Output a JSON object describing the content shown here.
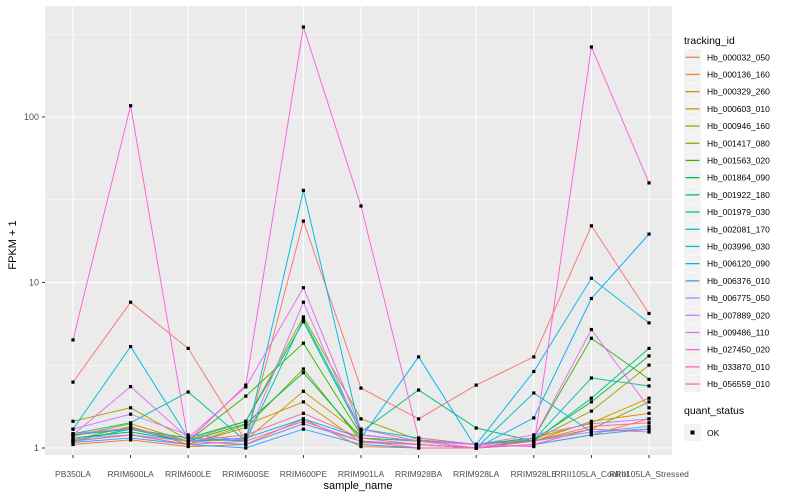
{
  "chart_data": {
    "type": "line",
    "xlabel": "sample_name",
    "ylabel": "FPKM + 1",
    "yscale": "log10",
    "yticks": [
      1,
      10,
      100
    ],
    "ytick_labels": [
      "1",
      "10",
      "100"
    ],
    "yminor": [
      3.162,
      31.62,
      316.2
    ],
    "ylim": [
      0.9,
      468
    ],
    "grid": true,
    "legend_position": "right",
    "panel_bg": "#EBEBEB",
    "grid_color": "#FFFFFF",
    "tick_text_color": "#4D4D4D",
    "marker": "square",
    "marker_color": "#000000",
    "legend_key_bg": "#F2F2F2",
    "legend_title": "tracking_id",
    "legend2_title": "quant_status",
    "legend2_items": [
      {
        "label": "OK",
        "shape": "square",
        "color": "#000000"
      }
    ],
    "categories": [
      "PB350LA",
      "RRIM600LA",
      "RRIM600LE",
      "RRIM600SE",
      "RRIM600PE",
      "RRIM901LA",
      "RRIM928BA",
      "RRIM928LA",
      "RRIM928LE",
      "RRII105LA_Control",
      "RRII105LA_Stressed"
    ],
    "series": [
      {
        "name": "Hb_000032_050",
        "color": "#F8766D",
        "values": [
          2.5,
          7.6,
          4.0,
          1.1,
          23.5,
          2.3,
          1.5,
          2.4,
          3.55,
          22,
          6.5
        ]
      },
      {
        "name": "Hb_000136_160",
        "color": "#EA8331",
        "values": [
          1.05,
          1.12,
          1.02,
          1.05,
          1.5,
          1.02,
          1.0,
          1.0,
          1.05,
          1.2,
          1.5
        ]
      },
      {
        "name": "Hb_000329_260",
        "color": "#D89000",
        "values": [
          1.1,
          1.2,
          1.05,
          1.38,
          1.9,
          1.08,
          1.05,
          1.0,
          1.1,
          1.45,
          1.62
        ]
      },
      {
        "name": "Hb_000603_010",
        "color": "#C09B00",
        "values": [
          1.18,
          1.4,
          1.1,
          1.12,
          2.2,
          1.2,
          1.1,
          1.05,
          1.15,
          1.42,
          2.0
        ]
      },
      {
        "name": "Hb_000946_160",
        "color": "#A3A500",
        "values": [
          1.45,
          1.75,
          1.12,
          1.45,
          6.2,
          1.5,
          1.12,
          1.05,
          1.12,
          1.67,
          3.17
        ]
      },
      {
        "name": "Hb_001417_080",
        "color": "#7CAE00",
        "values": [
          1.12,
          1.35,
          1.05,
          1.33,
          3.0,
          1.1,
          1.05,
          1.0,
          1.1,
          1.3,
          1.9
        ]
      },
      {
        "name": "Hb_001563_020",
        "color": "#39B600",
        "values": [
          1.2,
          1.3,
          1.1,
          2.06,
          4.3,
          1.2,
          1.1,
          1.05,
          1.15,
          4.6,
          2.6
        ]
      },
      {
        "name": "Hb_001864_090",
        "color": "#00BB4E",
        "values": [
          1.15,
          1.25,
          1.1,
          1.4,
          2.85,
          1.15,
          1.1,
          1.0,
          1.12,
          1.9,
          3.6
        ]
      },
      {
        "name": "Hb_001922_180",
        "color": "#00BF7D",
        "values": [
          1.1,
          1.3,
          1.15,
          1.45,
          5.8,
          1.25,
          2.24,
          1.32,
          1.1,
          2.0,
          4.0
        ]
      },
      {
        "name": "Hb_001979_030",
        "color": "#00C1A3",
        "values": [
          1.22,
          1.42,
          2.18,
          1.1,
          6.0,
          1.3,
          1.15,
          1.05,
          1.12,
          2.65,
          2.37
        ]
      },
      {
        "name": "Hb_002081_170",
        "color": "#00BFC4",
        "values": [
          1.1,
          1.2,
          1.1,
          1.05,
          1.4,
          1.1,
          1.05,
          1.0,
          2.15,
          1.25,
          1.3
        ]
      },
      {
        "name": "Hb_003996_030",
        "color": "#00BAE0",
        "values": [
          1.3,
          4.1,
          1.15,
          1.1,
          36,
          1.2,
          1.1,
          1.05,
          2.9,
          10.6,
          5.7
        ]
      },
      {
        "name": "Hb_006120_090",
        "color": "#00B0F6",
        "values": [
          1.2,
          1.3,
          1.1,
          1.15,
          1.5,
          1.15,
          3.55,
          1.0,
          1.52,
          8.0,
          19.6
        ]
      },
      {
        "name": "Hb_006376_010",
        "color": "#35A2FF",
        "values": [
          1.08,
          1.15,
          1.05,
          1.0,
          1.3,
          1.05,
          1.0,
          1.0,
          1.05,
          1.2,
          1.3
        ]
      },
      {
        "name": "Hb_006775_050",
        "color": "#9590FF",
        "values": [
          1.15,
          1.2,
          1.1,
          1.05,
          1.4,
          1.1,
          1.05,
          1.0,
          1.1,
          1.25,
          1.35
        ]
      },
      {
        "name": "Hb_007889_020",
        "color": "#C77CFF",
        "values": [
          1.3,
          1.6,
          1.2,
          1.12,
          7.6,
          1.2,
          1.1,
          1.05,
          1.2,
          1.4,
          1.5
        ]
      },
      {
        "name": "Hb_009486_110",
        "color": "#E76BF3",
        "values": [
          1.2,
          2.35,
          1.15,
          2.34,
          9.3,
          1.3,
          1.1,
          1.0,
          1.15,
          5.2,
          1.75
        ]
      },
      {
        "name": "Hb_027450_020",
        "color": "#FA62DB",
        "values": [
          4.5,
          117,
          1.1,
          2.4,
          350,
          29,
          1.15,
          1.05,
          1.02,
          265,
          40
        ]
      },
      {
        "name": "Hb_033870_010",
        "color": "#FF62BC",
        "values": [
          1.1,
          1.2,
          1.05,
          1.1,
          1.45,
          1.1,
          1.0,
          1.0,
          1.05,
          1.3,
          1.25
        ]
      },
      {
        "name": "Hb_056559_010",
        "color": "#FF6A98",
        "values": [
          1.22,
          1.32,
          1.1,
          1.2,
          1.62,
          1.15,
          1.05,
          1.0,
          1.1,
          1.35,
          1.42
        ]
      }
    ]
  }
}
